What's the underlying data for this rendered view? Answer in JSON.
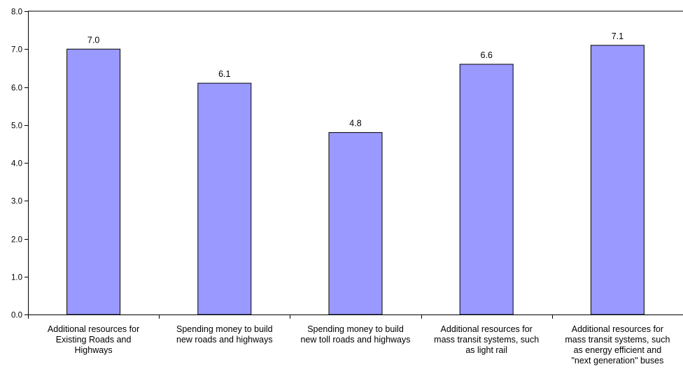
{
  "chart_data": {
    "type": "bar",
    "categories": [
      [
        "Additional resources for",
        "Existing Roads and",
        "Highways"
      ],
      [
        "Spending money to build",
        "new roads and highways"
      ],
      [
        "Spending money to build",
        "new toll roads and highways"
      ],
      [
        "Additional resources for",
        "mass transit systems, such",
        "as light rail"
      ],
      [
        "Additional resources for",
        "mass transit systems, such",
        "as energy efficient and",
        "\"next generation\" buses"
      ]
    ],
    "values": [
      7.0,
      6.1,
      4.8,
      6.6,
      7.1
    ],
    "data_labels": [
      "7.0",
      "6.1",
      "4.8",
      "6.6",
      "7.1"
    ],
    "ylim": [
      0,
      8
    ],
    "yticks": [
      0,
      1,
      2,
      3,
      4,
      5,
      6,
      7,
      8
    ],
    "ytick_labels": [
      "0.0",
      "1.0",
      "2.0",
      "3.0",
      "4.0",
      "5.0",
      "6.0",
      "7.0",
      "8.0"
    ],
    "bar_fill": "#9999ff",
    "bar_stroke": "#000000",
    "title": "",
    "xlabel": "",
    "ylabel": "",
    "grid": false,
    "legend": "none"
  }
}
